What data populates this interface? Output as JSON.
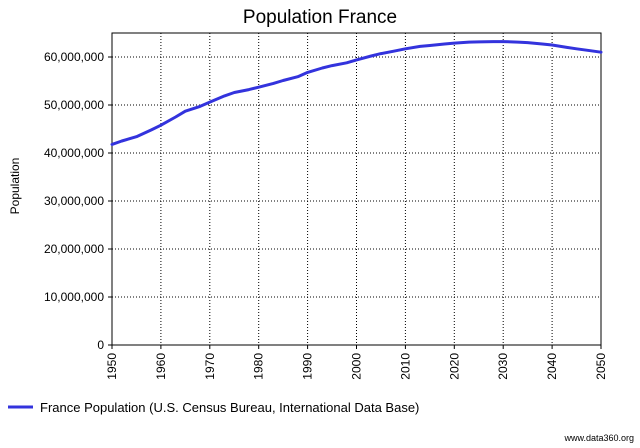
{
  "chart_data": {
    "type": "line",
    "title": "Population France",
    "xlabel": "",
    "ylabel": "Population",
    "xlim": [
      1950,
      2050
    ],
    "ylim": [
      0,
      65000000
    ],
    "x_ticks": [
      "1950",
      "1960",
      "1970",
      "1980",
      "1990",
      "2000",
      "2010",
      "2020",
      "2030",
      "2040",
      "2050"
    ],
    "y_ticks": [
      "0",
      "10,000,000",
      "20,000,000",
      "30,000,000",
      "40,000,000",
      "50,000,000",
      "60,000,000"
    ],
    "grid": true,
    "legend_position": "bottom-left",
    "series": [
      {
        "name": "France Population (U.S. Census Bureau, International Data Base)",
        "color": "#3333dd",
        "x": [
          1950,
          1952,
          1955,
          1958,
          1960,
          1963,
          1965,
          1968,
          1970,
          1973,
          1975,
          1978,
          1980,
          1983,
          1985,
          1988,
          1990,
          1993,
          1995,
          1998,
          2000,
          2003,
          2005,
          2008,
          2010,
          2013,
          2015,
          2018,
          2020,
          2023,
          2025,
          2028,
          2030,
          2033,
          2035,
          2038,
          2040,
          2043,
          2045,
          2048,
          2050
        ],
        "y": [
          41800000,
          42500000,
          43400000,
          44800000,
          45800000,
          47500000,
          48700000,
          49700000,
          50600000,
          51900000,
          52600000,
          53200000,
          53700000,
          54500000,
          55100000,
          55900000,
          56800000,
          57700000,
          58200000,
          58800000,
          59400000,
          60200000,
          60700000,
          61300000,
          61700000,
          62200000,
          62400000,
          62700000,
          62900000,
          63100000,
          63150000,
          63200000,
          63200000,
          63100000,
          63000000,
          62700000,
          62500000,
          62000000,
          61700000,
          61300000,
          61000000
        ]
      }
    ]
  },
  "watermark": "www.data360.org"
}
